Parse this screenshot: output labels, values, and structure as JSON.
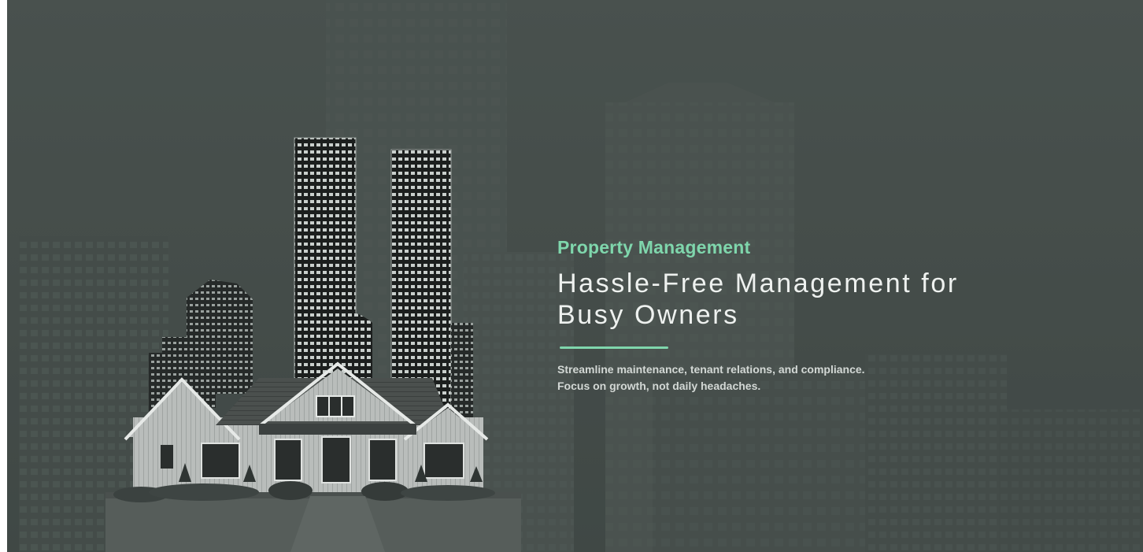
{
  "hero": {
    "eyebrow": "Property Management",
    "headline": {
      "line1": "Hassle-Free Management for",
      "line2": "Busy Owners"
    },
    "description": {
      "line1": "Streamline maintenance, tenant relations, and compliance.",
      "line2": "Focus on growth, not daily headaches."
    },
    "colors": {
      "accent": "#7fd6ac",
      "background": "#474f4c",
      "headline": "#eef1ef",
      "body": "#d3d8d5"
    }
  }
}
